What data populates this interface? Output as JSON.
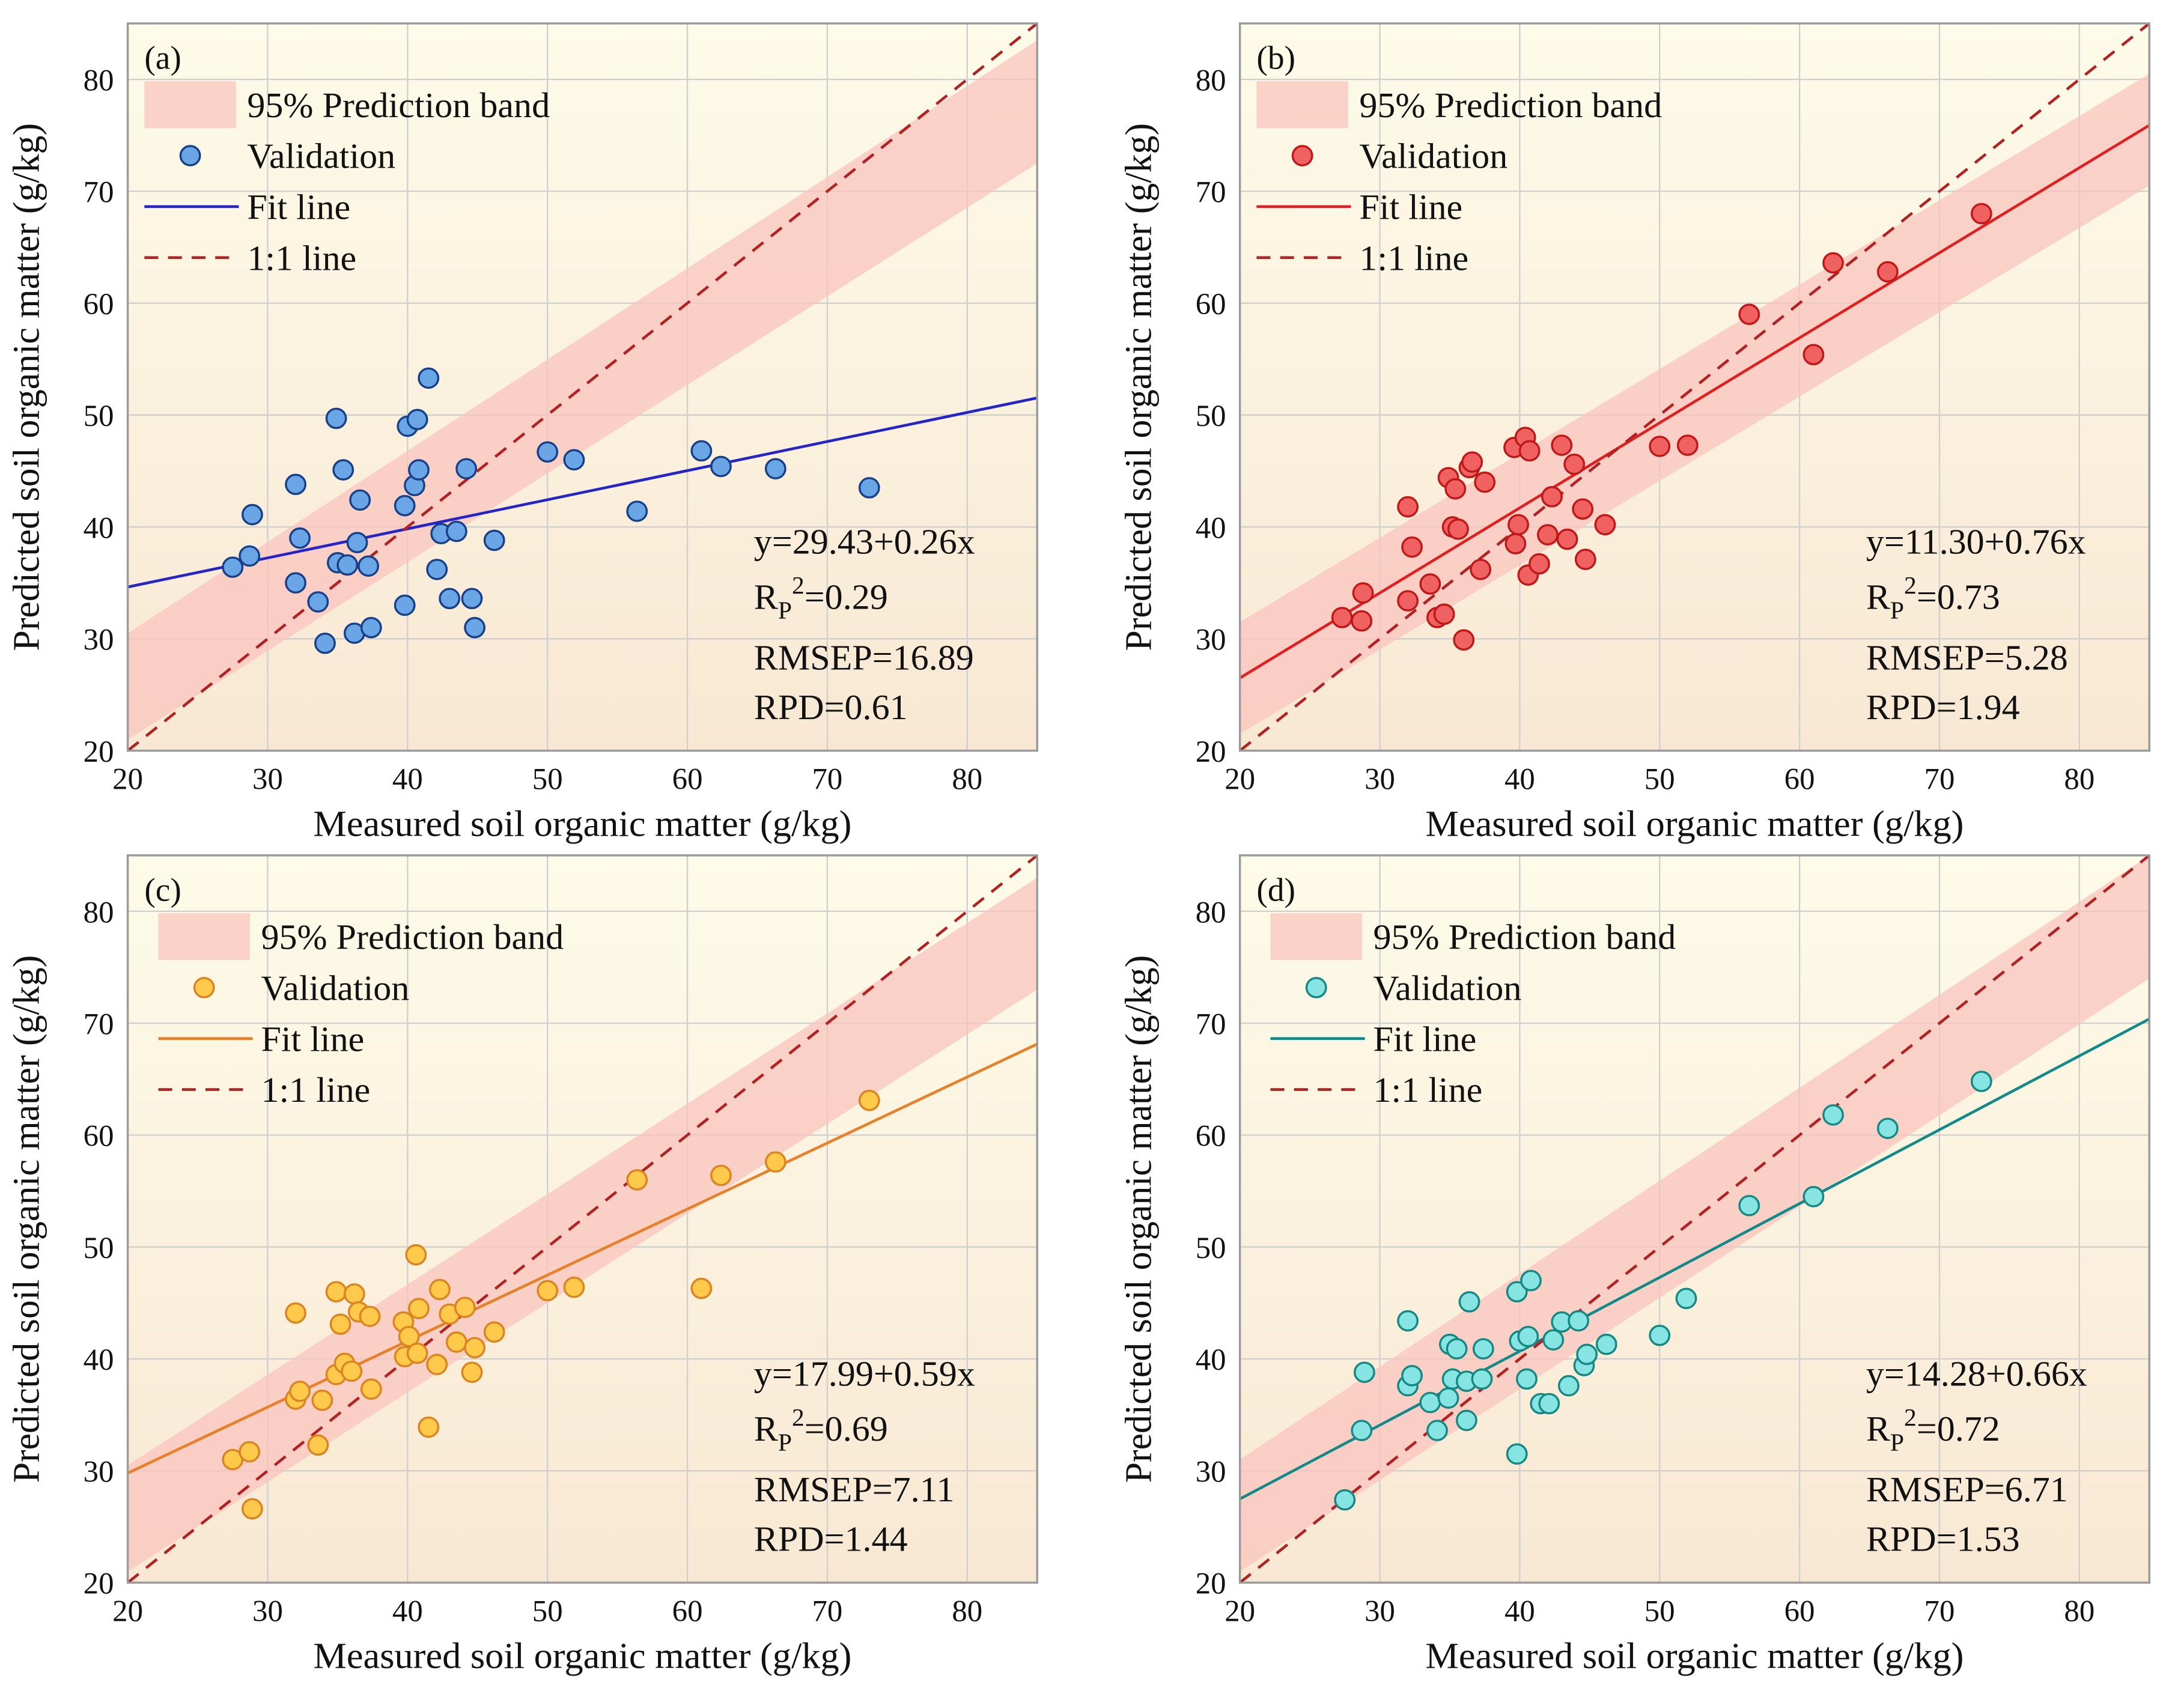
{
  "chart_data": [
    {
      "type": "scatter",
      "label": "(a)",
      "xlabel": "Measured soil organic matter (g/kg)",
      "ylabel": "Predicted soil organic matter (g/kg)",
      "xlim": [
        20,
        85
      ],
      "ylim": [
        20,
        85
      ],
      "xticks": [
        20,
        30,
        40,
        50,
        60,
        70,
        80
      ],
      "yticks": [
        20,
        30,
        40,
        50,
        60,
        70,
        80
      ],
      "grid": true,
      "band": {
        "name": "95% Prediction band",
        "color": "#f9c4bd",
        "x": [
          20,
          85
        ],
        "lower": [
          21,
          72.5
        ],
        "upper": [
          30.5,
          83.5
        ]
      },
      "series": [
        {
          "name": "Validation",
          "mode": "markers",
          "color": "#6aa6e6",
          "edgecolor": "#17408a",
          "x": [
            27.5,
            28.7,
            28.9,
            32,
            32,
            32.3,
            33.6,
            34.1,
            34.9,
            35,
            35.4,
            35.7,
            36.2,
            36.4,
            36.6,
            37.2,
            37.4,
            39.8,
            39.8,
            40,
            40.5,
            40.7,
            40.8,
            41.5,
            42.1,
            42.4,
            43,
            43.5,
            44.2,
            44.6,
            44.8,
            46.2,
            50,
            51.9,
            56.4,
            61,
            62.4,
            66.3,
            73
          ],
          "values": [
            36.4,
            37.4,
            41.1,
            43.8,
            35,
            39,
            33.3,
            29.6,
            49.7,
            36.8,
            45.1,
            36.6,
            30.5,
            38.6,
            42.4,
            36.5,
            31,
            33,
            41.9,
            49,
            43.7,
            49.6,
            45.1,
            53.3,
            36.2,
            39.4,
            33.6,
            39.6,
            45.2,
            33.6,
            31,
            38.8,
            46.7,
            46,
            41.4,
            46.8,
            45.4,
            45.2,
            43.5
          ]
        },
        {
          "name": "Fit line",
          "mode": "lines",
          "color": "#2424c8",
          "x": [
            20,
            85
          ],
          "values": [
            34.63,
            51.53
          ]
        },
        {
          "name": "1:1 line",
          "mode": "lines",
          "dash": true,
          "color": "#b22222",
          "x": [
            20,
            85
          ],
          "values": [
            20,
            85
          ]
        }
      ],
      "annotations": [
        "y=29.43+0.26x",
        {
          "base": "R",
          "sub": "P",
          "sup": "2",
          "rest": "=0.29"
        },
        "RMSEP=16.89",
        "RPD=0.61"
      ]
    },
    {
      "type": "scatter",
      "label": "(b)",
      "xlabel": "Measured soil organic matter (g/kg)",
      "ylabel": "Predicted soil organic matter (g/kg)",
      "xlim": [
        20,
        85
      ],
      "ylim": [
        20,
        85
      ],
      "xticks": [
        20,
        30,
        40,
        50,
        60,
        70,
        80
      ],
      "yticks": [
        20,
        30,
        40,
        50,
        60,
        70,
        80
      ],
      "grid": true,
      "band": {
        "name": "95% Prediction band",
        "color": "#f9c4bd",
        "x": [
          20,
          85
        ],
        "lower": [
          21.5,
          70.5
        ],
        "upper": [
          31.5,
          80.5
        ]
      },
      "series": [
        {
          "name": "Validation",
          "mode": "markers",
          "color": "#f06262",
          "edgecolor": "#c01818",
          "x": [
            27.3,
            28.8,
            28.7,
            32,
            32,
            32.3,
            33.6,
            34.1,
            34.6,
            34.9,
            35.2,
            35.4,
            35.6,
            36,
            36.4,
            36.6,
            37.2,
            37.5,
            39.6,
            39.7,
            39.9,
            40.4,
            40.6,
            40.7,
            41.4,
            42,
            42.3,
            43,
            43.4,
            43.9,
            44.5,
            44.7,
            46.1,
            50,
            52,
            56.4,
            61,
            62.4,
            66.3,
            73
          ],
          "values": [
            31.9,
            34.1,
            31.6,
            41.8,
            33.4,
            38.2,
            34.9,
            31.9,
            32.2,
            44.4,
            40,
            43.4,
            39.8,
            29.9,
            45.3,
            45.8,
            36.2,
            44,
            47.1,
            38.5,
            40.2,
            48,
            35.7,
            46.8,
            36.7,
            39.3,
            42.7,
            47.3,
            38.9,
            45.6,
            41.6,
            37.1,
            40.2,
            47.2,
            47.3,
            59,
            55.4,
            63.6,
            62.8,
            68
          ]
        },
        {
          "name": "Fit line",
          "mode": "lines",
          "color": "#e02020",
          "x": [
            20,
            85
          ],
          "values": [
            26.5,
            75.9
          ]
        },
        {
          "name": "1:1 line",
          "mode": "lines",
          "dash": true,
          "color": "#b22222",
          "x": [
            20,
            85
          ],
          "values": [
            20,
            85
          ]
        }
      ],
      "annotations": [
        "y=11.30+0.76x",
        {
          "base": "R",
          "sub": "P",
          "sup": "2",
          "rest": "=0.73"
        },
        "RMSEP=5.28",
        "RPD=1.94"
      ]
    },
    {
      "type": "scatter",
      "label": "(c)",
      "xlabel": "Measured soil organic matter (g/kg)",
      "ylabel": "Predicted soil organic matter (g/kg)",
      "xlim": [
        20,
        85
      ],
      "ylim": [
        20,
        85
      ],
      "xticks": [
        20,
        30,
        40,
        50,
        60,
        70,
        80
      ],
      "yticks": [
        20,
        30,
        40,
        50,
        60,
        70,
        80
      ],
      "grid": true,
      "band": {
        "name": "95% Prediction band",
        "color": "#f9c4bd",
        "x": [
          20,
          85
        ],
        "lower": [
          21,
          73
        ],
        "upper": [
          30.5,
          83
        ]
      },
      "series": [
        {
          "name": "Validation",
          "mode": "markers",
          "color": "#ffca4c",
          "edgecolor": "#dc8420",
          "x": [
            27.5,
            28.7,
            28.9,
            32,
            32,
            32.3,
            33.6,
            33.9,
            34.9,
            34.9,
            35.2,
            35.5,
            36,
            36.2,
            36.5,
            37.3,
            37.4,
            39.7,
            39.8,
            40.1,
            40.6,
            40.7,
            40.8,
            41.5,
            42.1,
            42.3,
            43,
            43.5,
            44.1,
            44.6,
            44.8,
            46.2,
            50,
            51.9,
            56.4,
            61,
            62.4,
            66.3,
            73
          ],
          "values": [
            31,
            31.7,
            26.6,
            44.1,
            36.4,
            37.1,
            32.3,
            36.3,
            46,
            38.6,
            43.1,
            39.6,
            38.9,
            45.8,
            44.2,
            43.8,
            37.3,
            43.3,
            40.2,
            42,
            49.3,
            40.5,
            44.5,
            33.9,
            39.5,
            46.2,
            44,
            41.5,
            44.6,
            38.8,
            41,
            42.4,
            46.1,
            46.4,
            56,
            46.3,
            56.4,
            57.6,
            63.1
          ]
        },
        {
          "name": "Fit line",
          "mode": "lines",
          "color": "#e8802a",
          "x": [
            20,
            85
          ],
          "values": [
            29.79,
            68.14
          ]
        },
        {
          "name": "1:1 line",
          "mode": "lines",
          "dash": true,
          "color": "#b22222",
          "x": [
            20,
            85
          ],
          "values": [
            20,
            85
          ]
        }
      ],
      "annotations": [
        "y=17.99+0.59x",
        {
          "base": "R",
          "sub": "P",
          "sup": "2",
          "rest": "=0.69"
        },
        "RMSEP=7.11",
        "RPD=1.44"
      ]
    },
    {
      "type": "scatter",
      "label": "(d)",
      "xlabel": "Measured soil organic matter (g/kg)",
      "ylabel": "Predicted soil organic matter (g/kg)",
      "xlim": [
        20,
        85
      ],
      "ylim": [
        20,
        85
      ],
      "xticks": [
        20,
        30,
        40,
        50,
        60,
        70,
        80
      ],
      "yticks": [
        20,
        30,
        40,
        50,
        60,
        70,
        80
      ],
      "grid": true,
      "band": {
        "name": "95% Prediction band",
        "color": "#f9c4bd",
        "x": [
          20,
          85
        ],
        "lower": [
          21,
          74
        ],
        "upper": [
          31,
          85
        ]
      },
      "series": [
        {
          "name": "Validation",
          "mode": "markers",
          "color": "#86e4e2",
          "edgecolor": "#158884",
          "x": [
            27.5,
            28.7,
            28.9,
            32,
            32,
            32.3,
            33.6,
            34.1,
            34.9,
            35,
            35.2,
            35.5,
            36.2,
            36.2,
            36.4,
            37.3,
            37.4,
            39.8,
            39.8,
            40,
            40.5,
            40.6,
            40.8,
            41.5,
            42.1,
            42.4,
            43,
            43.5,
            44.2,
            44.6,
            44.8,
            46.2,
            50,
            51.9,
            56.4,
            61,
            62.4,
            66.3,
            73
          ],
          "values": [
            27.4,
            33.6,
            38.8,
            43.4,
            37.6,
            38.5,
            36.1,
            33.6,
            36.5,
            41.3,
            38.2,
            40.9,
            38,
            34.5,
            45.1,
            38.2,
            40.9,
            31.5,
            46,
            41.6,
            38.2,
            42,
            47,
            36,
            36,
            41.7,
            43.3,
            37.6,
            43.4,
            39.4,
            40.4,
            41.3,
            42.1,
            45.4,
            53.7,
            54.5,
            61.8,
            60.6,
            64.8
          ]
        },
        {
          "name": "Fit line",
          "mode": "lines",
          "color": "#138a8a",
          "x": [
            20,
            85
          ],
          "values": [
            27.48,
            70.38
          ]
        },
        {
          "name": "1:1 line",
          "mode": "lines",
          "dash": true,
          "color": "#b22222",
          "x": [
            20,
            85
          ],
          "values": [
            20,
            85
          ]
        }
      ],
      "annotations": [
        "y=14.28+0.66x",
        {
          "base": "R",
          "sub": "P",
          "sup": "2",
          "rest": "=0.72"
        },
        "RMSEP=6.71",
        "RPD=1.53"
      ]
    }
  ]
}
